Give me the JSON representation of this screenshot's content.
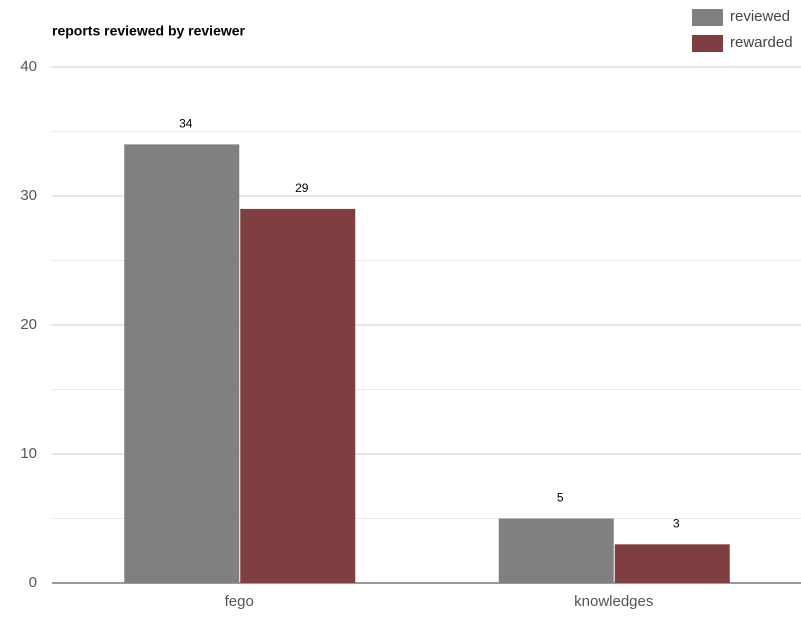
{
  "chart_data": {
    "type": "bar",
    "title": "reports reviewed by reviewer",
    "categories": [
      "fego",
      "knowledges"
    ],
    "series": [
      {
        "name": "reviewed",
        "color": "#808080",
        "values": [
          34,
          5
        ]
      },
      {
        "name": "rewarded",
        "color": "#7f3f40",
        "values": [
          29,
          3
        ]
      }
    ],
    "ylim": [
      0,
      40
    ],
    "yticks": [
      0,
      10,
      20,
      30,
      40
    ],
    "grid": true,
    "legend": "top-right"
  }
}
